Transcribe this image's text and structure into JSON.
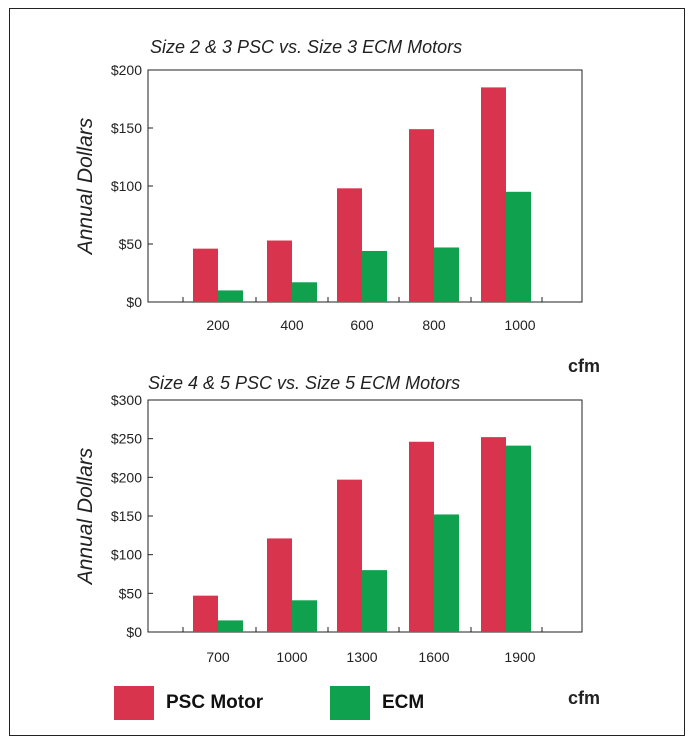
{
  "colors": {
    "psc": "#d9344d",
    "ecm": "#10a14e"
  },
  "legend": {
    "psc_label": "PSC Motor",
    "ecm_label": "ECM"
  },
  "chart_data": [
    {
      "type": "bar",
      "title": "Size 2 & 3 PSC vs. Size 3 ECM Motors",
      "ylabel": "Annual Dollars",
      "xlabel": "cfm",
      "categories": [
        "200",
        "400",
        "600",
        "800",
        "1000"
      ],
      "yticks": [
        "$0",
        "$50",
        "$100",
        "$150",
        "$200"
      ],
      "ylim": [
        0,
        200
      ],
      "series": [
        {
          "name": "PSC Motor",
          "values": [
            46,
            53,
            98,
            149,
            185
          ]
        },
        {
          "name": "ECM",
          "values": [
            10,
            17,
            44,
            47,
            95
          ]
        }
      ]
    },
    {
      "type": "bar",
      "title": "Size 4 & 5 PSC vs. Size 5 ECM Motors",
      "ylabel": "Annual Dollars",
      "xlabel": "cfm",
      "categories": [
        "700",
        "1000",
        "1300",
        "1600",
        "1900"
      ],
      "yticks": [
        "$0",
        "$50",
        "$100",
        "$150",
        "$200",
        "$250",
        "$300"
      ],
      "ylim": [
        0,
        300
      ],
      "series": [
        {
          "name": "PSC Motor",
          "values": [
            47,
            121,
            197,
            246,
            252
          ]
        },
        {
          "name": "ECM",
          "values": [
            15,
            41,
            80,
            152,
            241
          ]
        }
      ]
    }
  ]
}
